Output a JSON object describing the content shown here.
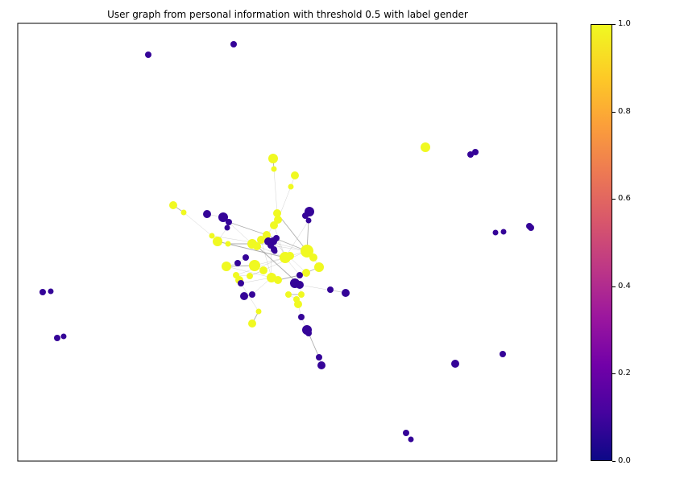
{
  "title": "User graph from personal information with threshold 0.5 with label gender",
  "colors": {
    "female": "#f0f921",
    "male": "#350498",
    "edge": "#999999"
  },
  "colorbar": {
    "colormap": "plasma",
    "ticks": [
      "0.0",
      "0.2",
      "0.4",
      "0.6",
      "0.8",
      "1.0"
    ],
    "range": [
      0.0,
      1.0
    ]
  }
}
